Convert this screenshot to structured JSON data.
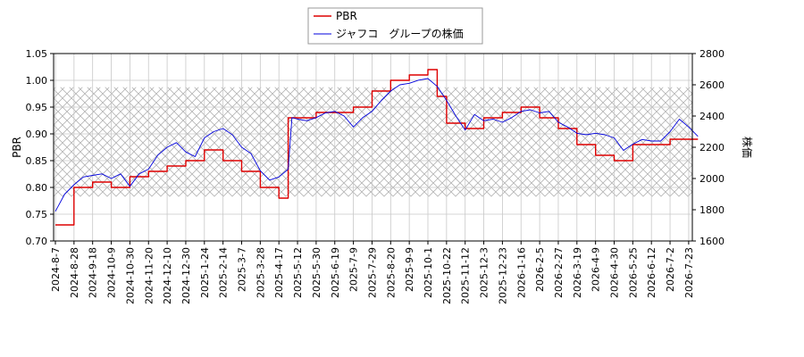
{
  "chart_data": {
    "type": "line",
    "title": "",
    "xlabel": "",
    "ylabel_left": "PBR",
    "ylabel_right": "株価",
    "ylim_left": [
      0.7,
      1.05
    ],
    "ylim_right": [
      1600,
      2800
    ],
    "yticks_left": [
      "0.70",
      "0.75",
      "0.80",
      "0.85",
      "0.90",
      "0.95",
      "1.00",
      "1.05"
    ],
    "yticks_right": [
      "1600",
      "1800",
      "2000",
      "2200",
      "2400",
      "2600",
      "2800"
    ],
    "xticks": [
      "2024-8-7",
      "2024-8-28",
      "2024-9-18",
      "2024-10-9",
      "2024-10-30",
      "2024-11-20",
      "2024-12-10",
      "2024-12-30",
      "2025-1-24",
      "2025-2-14",
      "2025-3-7",
      "2025-3-28",
      "2025-4-17",
      "2025-5-12",
      "2025-5-30",
      "2025-6-19",
      "2025-7-9",
      "2025-7-29",
      "2025-8-20",
      "2025-9-9",
      "2025-10-1",
      "2025-10-22",
      "2025-11-12",
      "2025-12-3",
      "2025-12-23",
      "2026-1-16",
      "2026-2-5",
      "2026-2-27",
      "2026-3-19",
      "2026-4-9",
      "2026-4-30",
      "2026-5-25",
      "2026-6-12",
      "2026-7-2",
      "2026-7-23"
    ],
    "grid": true,
    "legend_placement": "top-center",
    "shaded_band_pbr": [
      0.783,
      0.987
    ],
    "series": [
      {
        "name": "PBR",
        "axis": "left",
        "color": "#dd0000",
        "step": true,
        "values": [
          [
            0,
            0.73
          ],
          [
            1,
            0.73
          ],
          [
            1,
            0.8
          ],
          [
            2,
            0.8
          ],
          [
            2,
            0.81
          ],
          [
            3,
            0.81
          ],
          [
            3,
            0.8
          ],
          [
            4,
            0.8
          ],
          [
            4,
            0.82
          ],
          [
            5,
            0.82
          ],
          [
            5,
            0.83
          ],
          [
            6,
            0.83
          ],
          [
            6,
            0.84
          ],
          [
            7,
            0.84
          ],
          [
            7,
            0.85
          ],
          [
            8,
            0.85
          ],
          [
            8,
            0.87
          ],
          [
            9,
            0.87
          ],
          [
            9,
            0.85
          ],
          [
            10,
            0.85
          ],
          [
            10,
            0.83
          ],
          [
            11,
            0.83
          ],
          [
            11,
            0.8
          ],
          [
            12,
            0.8
          ],
          [
            12,
            0.78
          ],
          [
            12.5,
            0.78
          ],
          [
            12.5,
            0.93
          ],
          [
            13,
            0.93
          ],
          [
            14,
            0.93
          ],
          [
            14,
            0.94
          ],
          [
            15,
            0.94
          ],
          [
            16,
            0.94
          ],
          [
            16,
            0.95
          ],
          [
            17,
            0.95
          ],
          [
            17,
            0.98
          ],
          [
            18,
            0.98
          ],
          [
            18,
            1.0
          ],
          [
            19,
            1.0
          ],
          [
            19,
            1.01
          ],
          [
            20,
            1.01
          ],
          [
            20,
            1.02
          ],
          [
            20.5,
            1.02
          ],
          [
            20.5,
            0.97
          ],
          [
            21,
            0.97
          ],
          [
            21,
            0.92
          ],
          [
            22,
            0.92
          ],
          [
            22,
            0.91
          ],
          [
            23,
            0.91
          ],
          [
            23,
            0.93
          ],
          [
            24,
            0.93
          ],
          [
            24,
            0.94
          ],
          [
            25,
            0.94
          ],
          [
            25,
            0.95
          ],
          [
            26,
            0.95
          ],
          [
            26,
            0.93
          ],
          [
            27,
            0.93
          ],
          [
            27,
            0.91
          ],
          [
            28,
            0.91
          ],
          [
            28,
            0.88
          ],
          [
            29,
            0.88
          ],
          [
            29,
            0.86
          ],
          [
            30,
            0.86
          ],
          [
            30,
            0.85
          ],
          [
            31,
            0.85
          ],
          [
            31,
            0.88
          ],
          [
            32,
            0.88
          ],
          [
            33,
            0.88
          ],
          [
            33,
            0.89
          ],
          [
            34,
            0.89
          ],
          [
            34.5,
            0.89
          ]
        ]
      },
      {
        "name": "ジャフコ　グループの株価",
        "axis": "right",
        "color": "#0000dd",
        "step": false,
        "values": [
          [
            0,
            1790
          ],
          [
            0.5,
            1900
          ],
          [
            1,
            1960
          ],
          [
            1.5,
            2010
          ],
          [
            2,
            2020
          ],
          [
            2.5,
            2030
          ],
          [
            3,
            2000
          ],
          [
            3.5,
            2030
          ],
          [
            4,
            1950
          ],
          [
            4.5,
            2030
          ],
          [
            5,
            2060
          ],
          [
            5.5,
            2150
          ],
          [
            6,
            2200
          ],
          [
            6.5,
            2230
          ],
          [
            7,
            2170
          ],
          [
            7.5,
            2140
          ],
          [
            8,
            2260
          ],
          [
            8.5,
            2300
          ],
          [
            9,
            2320
          ],
          [
            9.5,
            2280
          ],
          [
            10,
            2200
          ],
          [
            10.5,
            2160
          ],
          [
            11,
            2050
          ],
          [
            11.5,
            1990
          ],
          [
            12,
            2010
          ],
          [
            12.5,
            2060
          ],
          [
            12.7,
            2390
          ],
          [
            13,
            2380
          ],
          [
            13.5,
            2370
          ],
          [
            14,
            2390
          ],
          [
            14.5,
            2420
          ],
          [
            15,
            2430
          ],
          [
            15.5,
            2400
          ],
          [
            16,
            2330
          ],
          [
            16.5,
            2390
          ],
          [
            17,
            2430
          ],
          [
            17.5,
            2500
          ],
          [
            18,
            2560
          ],
          [
            18.5,
            2600
          ],
          [
            19,
            2610
          ],
          [
            19.5,
            2630
          ],
          [
            20,
            2640
          ],
          [
            20.5,
            2590
          ],
          [
            21,
            2500
          ],
          [
            21.5,
            2400
          ],
          [
            22,
            2310
          ],
          [
            22.5,
            2410
          ],
          [
            23,
            2370
          ],
          [
            23.5,
            2380
          ],
          [
            24,
            2360
          ],
          [
            24.5,
            2390
          ],
          [
            25,
            2430
          ],
          [
            25.5,
            2440
          ],
          [
            26,
            2420
          ],
          [
            26.5,
            2430
          ],
          [
            27,
            2360
          ],
          [
            27.5,
            2330
          ],
          [
            28,
            2290
          ],
          [
            28.5,
            2280
          ],
          [
            29,
            2290
          ],
          [
            29.5,
            2280
          ],
          [
            30,
            2260
          ],
          [
            30.5,
            2180
          ],
          [
            31,
            2220
          ],
          [
            31.5,
            2250
          ],
          [
            32,
            2240
          ],
          [
            32.5,
            2240
          ],
          [
            33,
            2300
          ],
          [
            33.5,
            2380
          ],
          [
            34,
            2330
          ],
          [
            34.5,
            2270
          ]
        ]
      }
    ]
  }
}
